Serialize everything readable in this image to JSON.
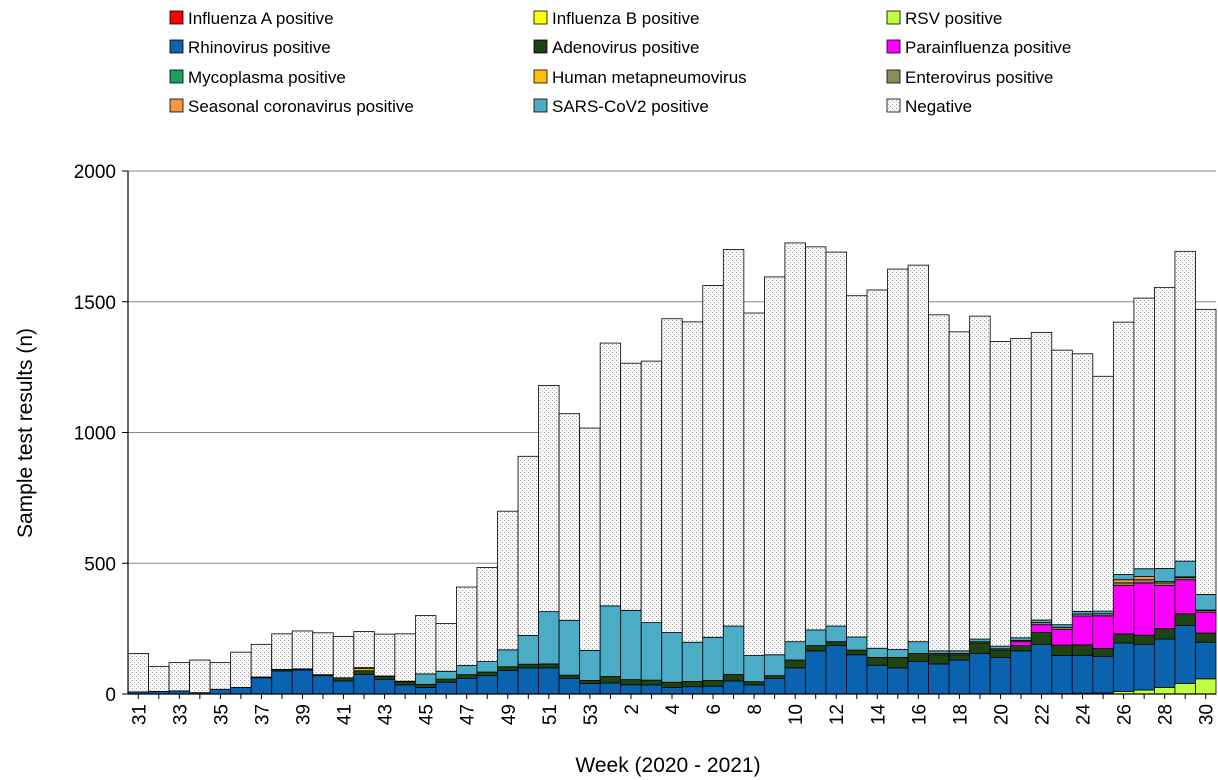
{
  "chart_data": {
    "type": "bar",
    "stacked": true,
    "xlabel": "Week (2020 - 2021)",
    "ylabel": "Sample test results (n)",
    "ylim": [
      0,
      2000
    ],
    "yticks": [
      0,
      500,
      1000,
      1500,
      2000
    ],
    "grid": "horizontal",
    "legend_position": "top",
    "categories": [
      "31",
      "32",
      "33",
      "34",
      "35",
      "36",
      "37",
      "38",
      "39",
      "40",
      "41",
      "42",
      "43",
      "44",
      "45",
      "46",
      "47",
      "48",
      "49",
      "50",
      "51",
      "52",
      "53",
      "1",
      "2",
      "3",
      "4",
      "5",
      "6",
      "7",
      "8",
      "9",
      "10",
      "11",
      "12",
      "13",
      "14",
      "15",
      "16",
      "17",
      "18",
      "19",
      "20",
      "21",
      "22",
      "23",
      "24",
      "25",
      "26",
      "27",
      "28",
      "29",
      "30"
    ],
    "x_tick_labels": [
      "31",
      "33",
      "35",
      "37",
      "39",
      "41",
      "43",
      "45",
      "47",
      "49",
      "51",
      "53",
      "2",
      "4",
      "6",
      "8",
      "10",
      "12",
      "14",
      "16",
      "18",
      "20",
      "22",
      "24",
      "26",
      "28",
      "30"
    ],
    "series": [
      {
        "name": "Influenza A positive",
        "color": "#ff0000",
        "values": [
          0,
          0,
          0,
          0,
          0,
          0,
          0,
          0,
          0,
          0,
          0,
          0,
          0,
          0,
          0,
          0,
          0,
          0,
          0,
          0,
          0,
          0,
          0,
          0,
          0,
          0,
          0,
          0,
          0,
          0,
          0,
          0,
          0,
          0,
          0,
          0,
          0,
          0,
          0,
          0,
          0,
          0,
          0,
          0,
          0,
          0,
          0,
          0,
          0,
          0,
          0,
          0,
          0
        ]
      },
      {
        "name": "Influenza B positive",
        "color": "#ffff00",
        "values": [
          0,
          0,
          0,
          0,
          0,
          0,
          0,
          0,
          0,
          0,
          0,
          0,
          0,
          0,
          0,
          0,
          0,
          0,
          0,
          0,
          0,
          0,
          0,
          0,
          0,
          0,
          0,
          0,
          0,
          0,
          0,
          0,
          0,
          0,
          0,
          0,
          0,
          0,
          0,
          0,
          0,
          0,
          0,
          0,
          0,
          0,
          0,
          0,
          0,
          0,
          0,
          0,
          0
        ]
      },
      {
        "name": "RSV positive",
        "color": "#bfff3f",
        "values": [
          0,
          0,
          0,
          0,
          0,
          0,
          0,
          0,
          0,
          0,
          0,
          0,
          0,
          0,
          0,
          0,
          0,
          0,
          0,
          0,
          0,
          0,
          0,
          0,
          0,
          0,
          0,
          0,
          0,
          0,
          0,
          0,
          0,
          0,
          0,
          0,
          0,
          0,
          0,
          0,
          0,
          0,
          0,
          0,
          0,
          2,
          3,
          4,
          10,
          15,
          25,
          40,
          58
        ]
      },
      {
        "name": "Rhinovirus positive",
        "color": "#0b63b0",
        "values": [
          8,
          10,
          12,
          5,
          18,
          25,
          62,
          88,
          92,
          70,
          50,
          75,
          55,
          35,
          25,
          45,
          60,
          70,
          90,
          100,
          100,
          60,
          40,
          42,
          35,
          35,
          25,
          28,
          30,
          50,
          35,
          60,
          100,
          165,
          185,
          150,
          110,
          100,
          125,
          115,
          130,
          155,
          140,
          165,
          190,
          145,
          145,
          140,
          185,
          175,
          185,
          222,
          140
        ]
      },
      {
        "name": "Adenovirus positive",
        "color": "#1d4412",
        "values": [
          0,
          0,
          0,
          0,
          0,
          0,
          3,
          6,
          4,
          4,
          12,
          14,
          12,
          12,
          12,
          12,
          14,
          14,
          14,
          14,
          15,
          12,
          12,
          25,
          20,
          18,
          20,
          20,
          22,
          25,
          12,
          10,
          30,
          20,
          15,
          18,
          30,
          40,
          30,
          35,
          20,
          40,
          28,
          20,
          45,
          40,
          40,
          30,
          35,
          35,
          40,
          45,
          35
        ]
      },
      {
        "name": "Parainfluenza positive",
        "color": "#ff00ff",
        "values": [
          0,
          0,
          0,
          0,
          0,
          0,
          0,
          0,
          0,
          0,
          0,
          0,
          0,
          0,
          0,
          0,
          0,
          0,
          0,
          0,
          0,
          0,
          0,
          0,
          0,
          0,
          0,
          0,
          0,
          0,
          0,
          0,
          0,
          0,
          0,
          0,
          0,
          0,
          0,
          0,
          0,
          0,
          0,
          15,
          30,
          60,
          110,
          125,
          185,
          200,
          165,
          130,
          80
        ]
      },
      {
        "name": "Mycoplasma positive",
        "color": "#1aa05a",
        "values": [
          0,
          0,
          0,
          0,
          0,
          0,
          0,
          0,
          0,
          0,
          0,
          0,
          0,
          0,
          0,
          0,
          0,
          0,
          0,
          0,
          0,
          0,
          0,
          0,
          0,
          0,
          0,
          0,
          0,
          0,
          0,
          0,
          0,
          0,
          0,
          0,
          0,
          0,
          0,
          0,
          0,
          0,
          0,
          0,
          0,
          0,
          0,
          0,
          0,
          0,
          0,
          0,
          0
        ]
      },
      {
        "name": "Human metapneumovirus",
        "color": "#ffc000",
        "values": [
          0,
          0,
          0,
          0,
          0,
          0,
          0,
          0,
          0,
          0,
          0,
          8,
          0,
          0,
          0,
          0,
          0,
          0,
          0,
          0,
          0,
          0,
          0,
          0,
          0,
          0,
          0,
          0,
          0,
          0,
          0,
          0,
          0,
          0,
          0,
          0,
          0,
          0,
          0,
          0,
          0,
          0,
          0,
          0,
          0,
          0,
          0,
          0,
          0,
          0,
          0,
          0,
          0
        ]
      },
      {
        "name": "Enterovirus positive",
        "color": "#8c8c5a",
        "values": [
          0,
          0,
          0,
          0,
          0,
          0,
          0,
          0,
          0,
          0,
          0,
          4,
          2,
          2,
          0,
          0,
          0,
          0,
          0,
          0,
          0,
          0,
          0,
          0,
          0,
          0,
          0,
          0,
          0,
          0,
          0,
          0,
          0,
          0,
          0,
          0,
          0,
          0,
          0,
          5,
          5,
          5,
          5,
          5,
          8,
          8,
          8,
          8,
          10,
          12,
          10,
          8,
          6
        ]
      },
      {
        "name": "Seasonal coronavirus positive",
        "color": "#f79646",
        "values": [
          0,
          0,
          0,
          0,
          0,
          0,
          0,
          0,
          0,
          0,
          0,
          0,
          0,
          0,
          0,
          0,
          0,
          0,
          0,
          0,
          0,
          0,
          0,
          0,
          0,
          0,
          0,
          0,
          0,
          0,
          0,
          0,
          0,
          0,
          0,
          0,
          0,
          0,
          0,
          0,
          0,
          0,
          0,
          0,
          0,
          0,
          0,
          0,
          12,
          12,
          5,
          3,
          2
        ]
      },
      {
        "name": "SARS-CoV2 positive",
        "color": "#4bacc6",
        "values": [
          0,
          0,
          0,
          0,
          0,
          0,
          0,
          0,
          0,
          0,
          0,
          0,
          0,
          0,
          40,
          30,
          35,
          40,
          65,
          110,
          200,
          210,
          115,
          270,
          265,
          220,
          190,
          150,
          165,
          185,
          100,
          80,
          70,
          60,
          60,
          50,
          35,
          30,
          45,
          10,
          10,
          10,
          10,
          10,
          10,
          10,
          10,
          10,
          20,
          30,
          50,
          60,
          60
        ]
      },
      {
        "name": "Negative",
        "color": "#f2f2f2",
        "values": [
          147,
          95,
          108,
          125,
          102,
          135,
          125,
          136,
          145,
          160,
          158,
          138,
          160,
          181,
          223,
          183,
          300,
          360,
          530,
          685,
          865,
          790,
          850,
          1005,
          945,
          1000,
          1200,
          1225,
          1345,
          1440,
          1310,
          1445,
          1525,
          1465,
          1430,
          1305,
          1370,
          1455,
          1440,
          1285,
          1220,
          1235,
          1165,
          1145,
          1100,
          1050,
          985,
          898,
          965,
          1035,
          1075,
          1185,
          1090
        ]
      }
    ]
  }
}
